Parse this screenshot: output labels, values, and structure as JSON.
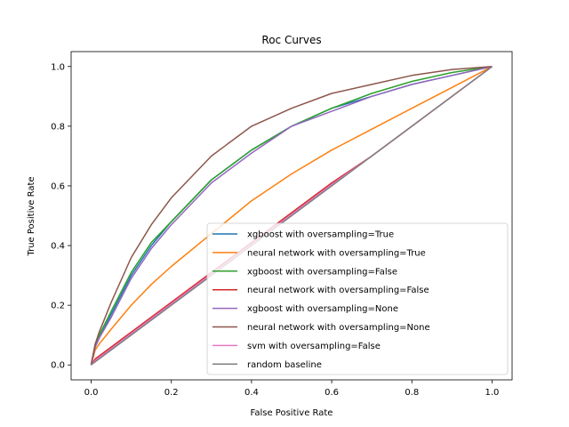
{
  "chart_data": {
    "type": "line",
    "title": "Roc Curves",
    "xlabel": "False Positive Rate",
    "ylabel": "True Positive Rate",
    "xlim": [
      -0.05,
      1.05
    ],
    "ylim": [
      -0.05,
      1.05
    ],
    "xticks": [
      0.0,
      0.2,
      0.4,
      0.6,
      0.8,
      1.0
    ],
    "yticks": [
      0.0,
      0.2,
      0.4,
      0.6,
      0.8,
      1.0
    ],
    "tick_labels": [
      "0.0",
      "0.2",
      "0.4",
      "0.6",
      "0.8",
      "1.0"
    ],
    "grid": false,
    "legend_position": "lower-right",
    "series": [
      {
        "name": "xgboost with oversampling=True",
        "color": "#1f77b4",
        "x": [
          0,
          0.01,
          0.02,
          0.05,
          0.1,
          0.15,
          0.2,
          0.3,
          0.4,
          0.5,
          0.6,
          0.7,
          0.8,
          0.9,
          1.0
        ],
        "y": [
          0,
          0.06,
          0.09,
          0.17,
          0.3,
          0.4,
          0.48,
          0.62,
          0.72,
          0.8,
          0.86,
          0.9,
          0.94,
          0.97,
          1.0
        ]
      },
      {
        "name": "neural network with oversampling=True",
        "color": "#ff7f0e",
        "x": [
          0,
          0.01,
          0.02,
          0.05,
          0.1,
          0.15,
          0.2,
          0.3,
          0.4,
          0.5,
          0.6,
          0.7,
          0.8,
          0.9,
          1.0
        ],
        "y": [
          0,
          0.05,
          0.07,
          0.12,
          0.2,
          0.27,
          0.33,
          0.44,
          0.55,
          0.64,
          0.72,
          0.79,
          0.86,
          0.93,
          1.0
        ]
      },
      {
        "name": "xgboost with oversampling=False",
        "color": "#2ca02c",
        "x": [
          0,
          0.01,
          0.02,
          0.05,
          0.1,
          0.15,
          0.2,
          0.3,
          0.4,
          0.5,
          0.6,
          0.7,
          0.8,
          0.9,
          1.0
        ],
        "y": [
          0,
          0.07,
          0.1,
          0.18,
          0.31,
          0.41,
          0.48,
          0.62,
          0.72,
          0.8,
          0.86,
          0.91,
          0.95,
          0.98,
          1.0
        ]
      },
      {
        "name": "neural network with oversampling=False",
        "color": "#d62728",
        "x": [
          0,
          0.01,
          0.05,
          0.1,
          0.2,
          0.3,
          0.4,
          0.5,
          0.6,
          0.7,
          0.8,
          0.9,
          1.0
        ],
        "y": [
          0,
          0.02,
          0.06,
          0.11,
          0.21,
          0.31,
          0.41,
          0.51,
          0.61,
          0.7,
          0.8,
          0.9,
          1.0
        ]
      },
      {
        "name": "xgboost with oversampling=None",
        "color": "#9467bd",
        "x": [
          0,
          0.01,
          0.02,
          0.05,
          0.1,
          0.15,
          0.2,
          0.3,
          0.4,
          0.5,
          0.6,
          0.7,
          0.8,
          0.9,
          1.0
        ],
        "y": [
          0,
          0.06,
          0.09,
          0.16,
          0.29,
          0.39,
          0.47,
          0.61,
          0.71,
          0.8,
          0.85,
          0.9,
          0.94,
          0.97,
          1.0
        ]
      },
      {
        "name": "neural network with oversampling=None",
        "color": "#8c564b",
        "x": [
          0,
          0.01,
          0.02,
          0.05,
          0.1,
          0.15,
          0.2,
          0.3,
          0.4,
          0.5,
          0.6,
          0.7,
          0.8,
          0.9,
          1.0
        ],
        "y": [
          0,
          0.07,
          0.11,
          0.21,
          0.36,
          0.47,
          0.56,
          0.7,
          0.8,
          0.86,
          0.91,
          0.94,
          0.97,
          0.99,
          1.0
        ]
      },
      {
        "name": "svm with oversampling=False",
        "color": "#e377c2",
        "x": [
          0,
          0.01,
          0.05,
          0.1,
          0.2,
          0.3,
          0.4,
          0.5,
          0.6,
          0.7,
          0.8,
          0.9,
          1.0
        ],
        "y": [
          0,
          0.015,
          0.055,
          0.105,
          0.205,
          0.305,
          0.405,
          0.505,
          0.605,
          0.7,
          0.8,
          0.9,
          1.0
        ]
      },
      {
        "name": "random baseline",
        "color": "#7f7f7f",
        "x": [
          0,
          1
        ],
        "y": [
          0,
          1
        ]
      }
    ]
  }
}
